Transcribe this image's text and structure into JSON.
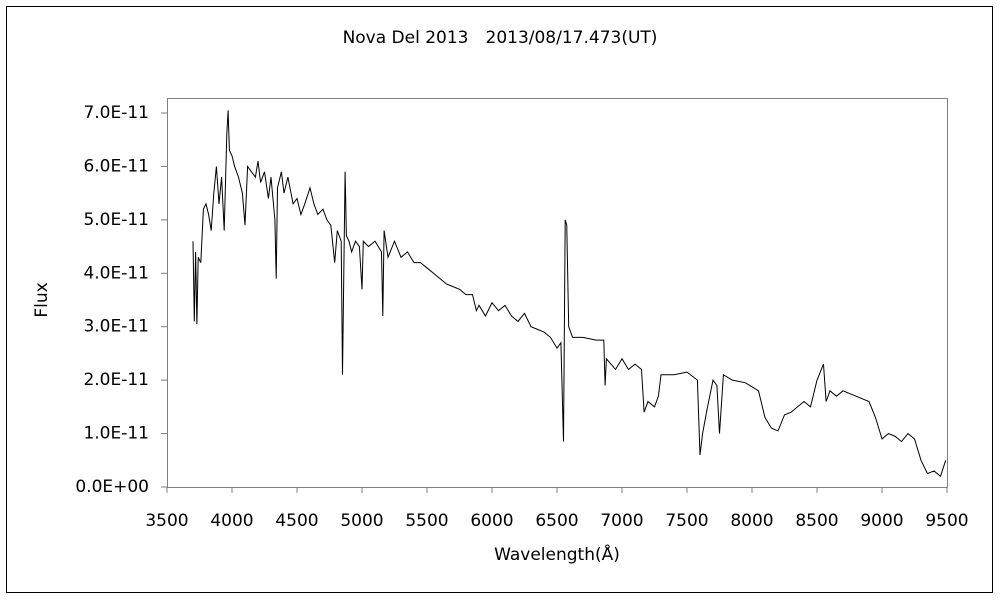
{
  "chart_data": {
    "type": "line",
    "title": "Nova Del 2013　2013/08/17.473(UT)",
    "xlabel": "Wavelength(Å)",
    "ylabel": "Flux",
    "color": "#000000",
    "xlim": [
      3500,
      9500
    ],
    "xticks": [
      3500,
      4000,
      4500,
      5000,
      5500,
      6000,
      6500,
      7000,
      7500,
      8000,
      8500,
      9000,
      9500
    ],
    "ylim": [
      0,
      7e-11
    ],
    "yticks": [
      {
        "value": 0,
        "label": "0.0E+00"
      },
      {
        "value": 1e-11,
        "label": "1.0E-11"
      },
      {
        "value": 2e-11,
        "label": "2.0E-11"
      },
      {
        "value": 3e-11,
        "label": "3.0E-11"
      },
      {
        "value": 4e-11,
        "label": "4.0E-11"
      },
      {
        "value": 5e-11,
        "label": "5.0E-11"
      },
      {
        "value": 6e-11,
        "label": "6.0E-11"
      },
      {
        "value": 7e-11,
        "label": "7.0E-11"
      }
    ],
    "grid": false,
    "x": [
      3700,
      3710,
      3720,
      3730,
      3740,
      3760,
      3780,
      3800,
      3820,
      3840,
      3860,
      3880,
      3900,
      3920,
      3940,
      3960,
      3970,
      3980,
      4000,
      4020,
      4050,
      4080,
      4100,
      4120,
      4150,
      4180,
      4200,
      4220,
      4250,
      4280,
      4300,
      4330,
      4340,
      4350,
      4380,
      4400,
      4430,
      4470,
      4500,
      4530,
      4560,
      4600,
      4630,
      4660,
      4700,
      4730,
      4760,
      4790,
      4810,
      4840,
      4850,
      4860,
      4870,
      4880,
      4900,
      4920,
      4950,
      4980,
      5000,
      5010,
      5050,
      5100,
      5150,
      5160,
      5170,
      5200,
      5250,
      5300,
      5350,
      5400,
      5450,
      5500,
      5550,
      5600,
      5650,
      5700,
      5750,
      5800,
      5850,
      5880,
      5900,
      5950,
      6000,
      6050,
      6100,
      6150,
      6200,
      6250,
      6300,
      6350,
      6400,
      6450,
      6500,
      6530,
      6550,
      6563,
      6575,
      6590,
      6620,
      6700,
      6800,
      6860,
      6870,
      6880,
      6950,
      7000,
      7050,
      7100,
      7150,
      7170,
      7200,
      7250,
      7280,
      7300,
      7400,
      7500,
      7580,
      7600,
      7620,
      7650,
      7700,
      7730,
      7750,
      7780,
      7850,
      7950,
      8050,
      8100,
      8150,
      8200,
      8250,
      8300,
      8400,
      8450,
      8500,
      8550,
      8570,
      8600,
      8650,
      8700,
      8800,
      8900,
      8950,
      9000,
      9050,
      9100,
      9150,
      9200,
      9250,
      9300,
      9350,
      9400,
      9450,
      9490
    ],
    "values": [
      4.6e-11,
      3.1e-11,
      4.4e-11,
      3.05e-11,
      4.3e-11,
      4.2e-11,
      5.2e-11,
      5.3e-11,
      5.1e-11,
      4.8e-11,
      5.5e-11,
      6e-11,
      5.3e-11,
      5.8e-11,
      4.8e-11,
      6.6e-11,
      7.05e-11,
      6.3e-11,
      6.2e-11,
      6e-11,
      5.8e-11,
      5.5e-11,
      4.9e-11,
      6e-11,
      5.9e-11,
      5.8e-11,
      6.1e-11,
      5.7e-11,
      5.9e-11,
      5.4e-11,
      5.8e-11,
      5e-11,
      3.9e-11,
      5.6e-11,
      5.9e-11,
      5.5e-11,
      5.8e-11,
      5.3e-11,
      5.4e-11,
      5.1e-11,
      5.3e-11,
      5.6e-11,
      5.3e-11,
      5.1e-11,
      5.2e-11,
      5e-11,
      4.9e-11,
      4.2e-11,
      4.8e-11,
      4.6e-11,
      2.1e-11,
      4e-11,
      5.9e-11,
      4.7e-11,
      4.6e-11,
      4.4e-11,
      4.6e-11,
      4.5e-11,
      3.7e-11,
      4.6e-11,
      4.5e-11,
      4.6e-11,
      4.4e-11,
      3.2e-11,
      4.8e-11,
      4.3e-11,
      4.6e-11,
      4.3e-11,
      4.4e-11,
      4.2e-11,
      4.2e-11,
      4.1e-11,
      4e-11,
      3.9e-11,
      3.8e-11,
      3.75e-11,
      3.7e-11,
      3.6e-11,
      3.6e-11,
      3.3e-11,
      3.4e-11,
      3.2e-11,
      3.45e-11,
      3.3e-11,
      3.4e-11,
      3.2e-11,
      3.1e-11,
      3.25e-11,
      3e-11,
      2.95e-11,
      2.9e-11,
      2.8e-11,
      2.6e-11,
      2.7e-11,
      8.5e-12,
      5e-11,
      4.9e-11,
      3e-11,
      2.8e-11,
      2.8e-11,
      2.75e-11,
      2.75e-11,
      1.9e-11,
      2.4e-11,
      2.2e-11,
      2.4e-11,
      2.2e-11,
      2.3e-11,
      2.2e-11,
      1.4e-11,
      1.6e-11,
      1.5e-11,
      1.7e-11,
      2.1e-11,
      2.1e-11,
      2.15e-11,
      2e-11,
      6e-12,
      1e-11,
      1.4e-11,
      2e-11,
      1.9e-11,
      1e-11,
      2.1e-11,
      2e-11,
      1.95e-11,
      1.8e-11,
      1.3e-11,
      1.1e-11,
      1.05e-11,
      1.35e-11,
      1.4e-11,
      1.6e-11,
      1.5e-11,
      2e-11,
      2.3e-11,
      1.6e-11,
      1.8e-11,
      1.7e-11,
      1.8e-11,
      1.7e-11,
      1.6e-11,
      1.3e-11,
      9e-12,
      1e-11,
      9.5e-12,
      8.5e-12,
      1e-11,
      9e-12,
      5e-12,
      2.5e-12,
      3e-12,
      2e-12,
      5e-12
    ]
  }
}
